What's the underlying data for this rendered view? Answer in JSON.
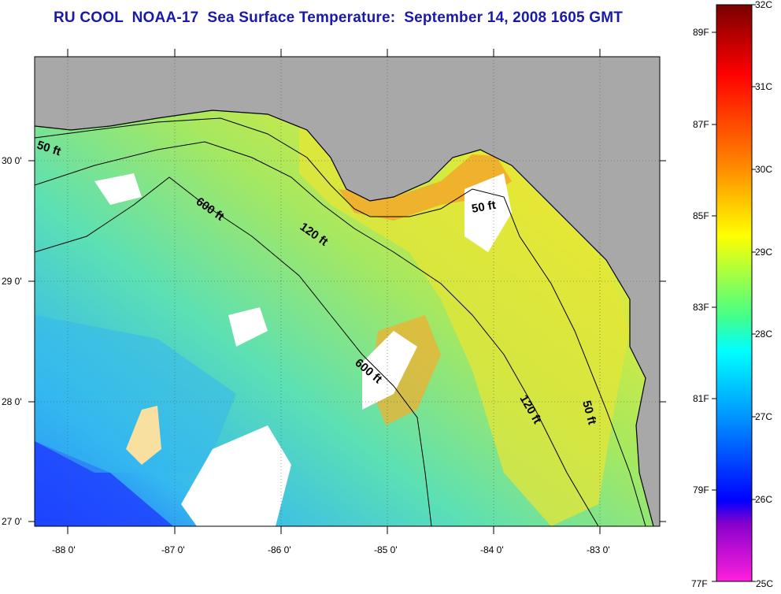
{
  "title": "RU COOL  NOAA-17  Sea Surface Temperature:  September 14, 2008 1605 GMT",
  "map": {
    "lon_labels": [
      "-88 0'",
      "-87 0'",
      "-86 0'",
      "-85 0'",
      "-84 0'",
      "-83 0'"
    ],
    "lat_labels": [
      "30 0'",
      "29 0'",
      "28 0'",
      "27 0'"
    ],
    "contours": [
      {
        "label": "50 ft"
      },
      {
        "label": "600 ft"
      },
      {
        "label": "120 ft"
      },
      {
        "label": "50 ft"
      },
      {
        "label": "600 ft"
      },
      {
        "label": "120 ft"
      },
      {
        "label": "50 ft"
      }
    ],
    "colors": {
      "land": "#a8a8a8",
      "cloud": "#ffffff",
      "warm": "#f4b020",
      "mid": "#d6ec3c",
      "cool": "#3cd6d0",
      "cold": "#1860ff"
    }
  },
  "colorbar": {
    "celsius": [
      "32C",
      "31C",
      "30C",
      "29C",
      "28C",
      "27C",
      "26C",
      "25C"
    ],
    "fahrenheit": [
      "89F",
      "87F",
      "85F",
      "83F",
      "81F",
      "79F",
      "77F"
    ],
    "colors": [
      "#8b0000",
      "#ff0000",
      "#ff8c00",
      "#ffff00",
      "#66ff66",
      "#00ffff",
      "#0080ff",
      "#0000ff",
      "#9900cc",
      "#ff33cc"
    ]
  }
}
